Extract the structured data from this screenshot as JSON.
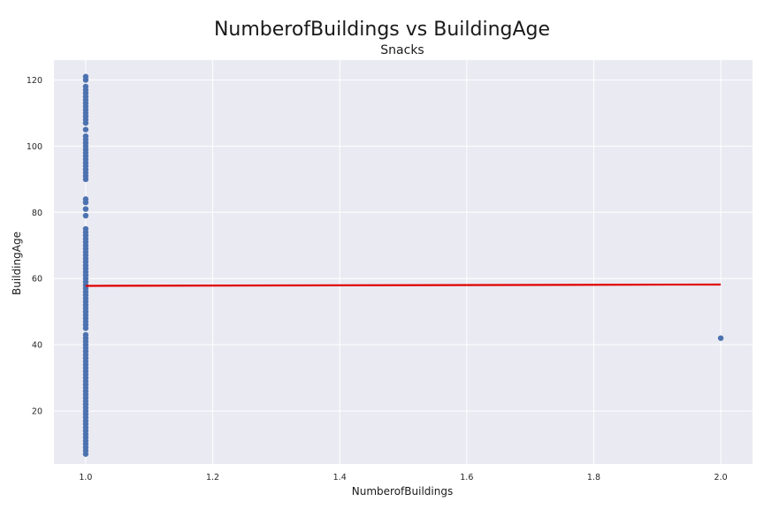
{
  "chart_data": {
    "type": "scatter",
    "title": "NumberofBuildings vs BuildingAge",
    "subtitle": "Snacks",
    "xlabel": "NumberofBuildings",
    "ylabel": "BuildingAge",
    "xlim": [
      0.95,
      2.05
    ],
    "ylim": [
      4,
      126
    ],
    "xticks": [
      1.0,
      1.2,
      1.4,
      1.6,
      1.8,
      2.0
    ],
    "xtick_labels": [
      "1.0",
      "1.2",
      "1.4",
      "1.6",
      "1.8",
      "2.0"
    ],
    "yticks": [
      20,
      40,
      60,
      80,
      100,
      120
    ],
    "ytick_labels": [
      "20",
      "40",
      "60",
      "80",
      "100",
      "120"
    ],
    "grid": true,
    "legend": "none",
    "points": [
      [
        1,
        121
      ],
      [
        1,
        120
      ],
      [
        1,
        118
      ],
      [
        1,
        117
      ],
      [
        1,
        116
      ],
      [
        1,
        115
      ],
      [
        1,
        114
      ],
      [
        1,
        113
      ],
      [
        1,
        112
      ],
      [
        1,
        111
      ],
      [
        1,
        110
      ],
      [
        1,
        109
      ],
      [
        1,
        108
      ],
      [
        1,
        107
      ],
      [
        1,
        105
      ],
      [
        1,
        103
      ],
      [
        1,
        102
      ],
      [
        1,
        101
      ],
      [
        1,
        100
      ],
      [
        1,
        99
      ],
      [
        1,
        98
      ],
      [
        1,
        97
      ],
      [
        1,
        96
      ],
      [
        1,
        95
      ],
      [
        1,
        94
      ],
      [
        1,
        93
      ],
      [
        1,
        92
      ],
      [
        1,
        91
      ],
      [
        1,
        90
      ],
      [
        1,
        84
      ],
      [
        1,
        83
      ],
      [
        1,
        81
      ],
      [
        1,
        79
      ],
      [
        1,
        75
      ],
      [
        1,
        74
      ],
      [
        1,
        73
      ],
      [
        1,
        72
      ],
      [
        1,
        71
      ],
      [
        1,
        70
      ],
      [
        1,
        69
      ],
      [
        1,
        68
      ],
      [
        1,
        67
      ],
      [
        1,
        66
      ],
      [
        1,
        65
      ],
      [
        1,
        64
      ],
      [
        1,
        63
      ],
      [
        1,
        62
      ],
      [
        1,
        61
      ],
      [
        1,
        60
      ],
      [
        1,
        59
      ],
      [
        1,
        58
      ],
      [
        1,
        57
      ],
      [
        1,
        56
      ],
      [
        1,
        55
      ],
      [
        1,
        54
      ],
      [
        1,
        53
      ],
      [
        1,
        52
      ],
      [
        1,
        51
      ],
      [
        1,
        50
      ],
      [
        1,
        49
      ],
      [
        1,
        48
      ],
      [
        1,
        47
      ],
      [
        1,
        46
      ],
      [
        1,
        45
      ],
      [
        1,
        43
      ],
      [
        1,
        42
      ],
      [
        1,
        41
      ],
      [
        1,
        40
      ],
      [
        1,
        39
      ],
      [
        1,
        38
      ],
      [
        1,
        37
      ],
      [
        1,
        36
      ],
      [
        1,
        35
      ],
      [
        1,
        34
      ],
      [
        1,
        33
      ],
      [
        1,
        32
      ],
      [
        1,
        31
      ],
      [
        1,
        30
      ],
      [
        1,
        29
      ],
      [
        1,
        28
      ],
      [
        1,
        27
      ],
      [
        1,
        26
      ],
      [
        1,
        25
      ],
      [
        1,
        24
      ],
      [
        1,
        23
      ],
      [
        1,
        22
      ],
      [
        1,
        21
      ],
      [
        1,
        20
      ],
      [
        1,
        19
      ],
      [
        1,
        18
      ],
      [
        1,
        17
      ],
      [
        1,
        16
      ],
      [
        1,
        15
      ],
      [
        1,
        14
      ],
      [
        1,
        13
      ],
      [
        1,
        12
      ],
      [
        1,
        11
      ],
      [
        1,
        10
      ],
      [
        1,
        9
      ],
      [
        1,
        8
      ],
      [
        1,
        7
      ],
      [
        2,
        42
      ]
    ],
    "regression_line": {
      "x": [
        1.0,
        2.0
      ],
      "y": [
        57.8,
        58.2
      ]
    },
    "colors": {
      "points": "#4c72b0",
      "regression": "#e00000",
      "background": "#eaeaf2",
      "grid": "#ffffff"
    }
  }
}
